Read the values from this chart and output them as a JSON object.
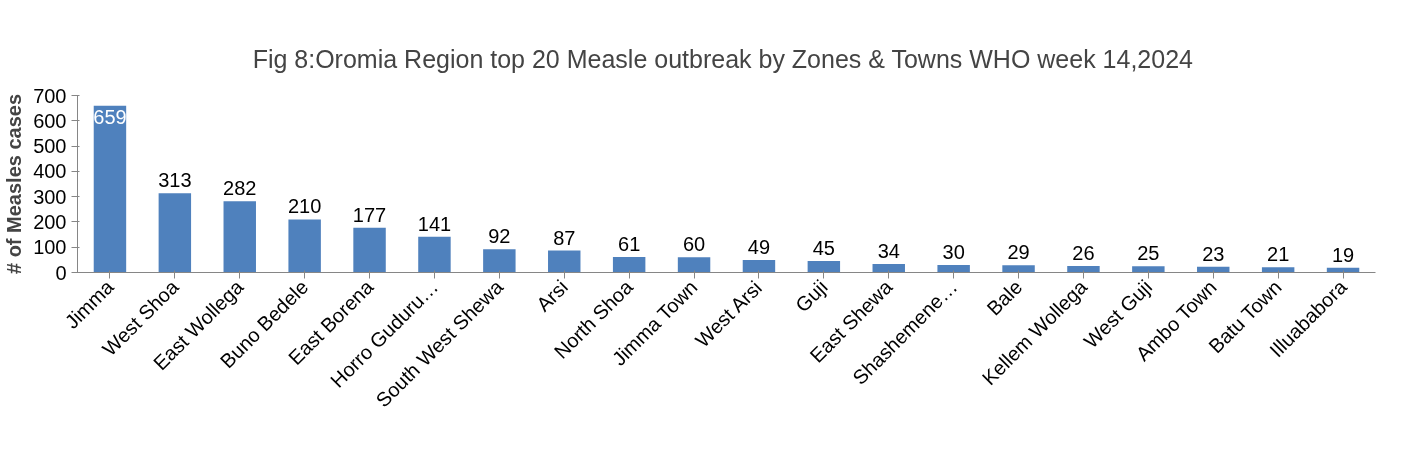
{
  "chart_data": {
    "type": "bar",
    "title": "Fig 8:Oromia Region top 20 Measle outbreak by Zones & Towns  WHO week 14,2024",
    "ylabel": "# of Measles cases",
    "categories": [
      "Jimma",
      "West Shoa",
      "East Wollega",
      "Buno Bedele",
      "East Borena",
      "Horro Guduru…",
      "South West Shewa",
      "Arsi",
      "North Shoa",
      "Jimma Town",
      "West Arsi",
      "Guji",
      "East Shewa",
      "Shashemene…",
      "Bale",
      "Kellem Wollega",
      "West Guji",
      "Ambo Town",
      "Batu Town",
      "Illuababora"
    ],
    "values": [
      659,
      313,
      282,
      210,
      177,
      141,
      92,
      87,
      61,
      60,
      49,
      45,
      34,
      30,
      29,
      26,
      25,
      23,
      21,
      19
    ],
    "color": "#4f81bd",
    "ylim": [
      0,
      700
    ],
    "yticks": [
      0,
      100,
      200,
      300,
      400,
      500,
      600,
      700
    ],
    "data_labels": true,
    "grid": false
  }
}
